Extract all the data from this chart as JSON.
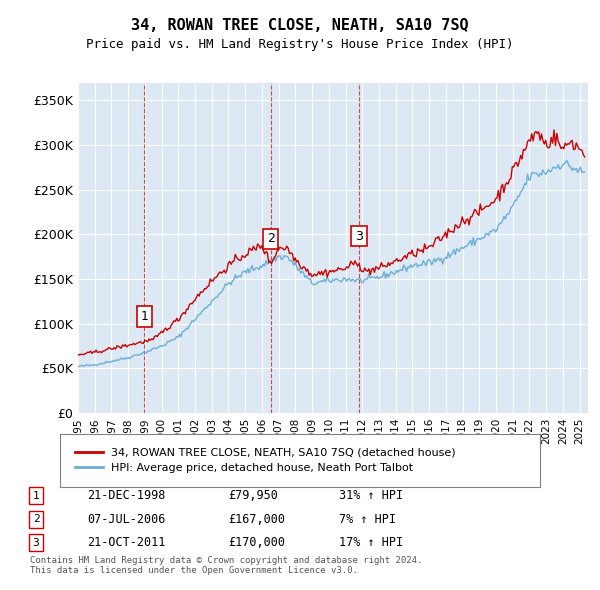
{
  "title": "34, ROWAN TREE CLOSE, NEATH, SA10 7SQ",
  "subtitle": "Price paid vs. HM Land Registry's House Price Index (HPI)",
  "background_color": "#dce9f5",
  "plot_bg_color": "#dce9f5",
  "ylabel_ticks": [
    "£0",
    "£50K",
    "£100K",
    "£150K",
    "£200K",
    "£250K",
    "£300K",
    "£350K"
  ],
  "ytick_values": [
    0,
    50000,
    100000,
    150000,
    200000,
    250000,
    300000,
    350000
  ],
  "ylim": [
    0,
    370000
  ],
  "xlim_start": 1995.0,
  "xlim_end": 2025.5,
  "sale_markers": [
    {
      "date_num": 1998.97,
      "price": 79950,
      "label": "1"
    },
    {
      "date_num": 2006.52,
      "price": 167000,
      "label": "2"
    },
    {
      "date_num": 2011.81,
      "price": 170000,
      "label": "3"
    }
  ],
  "sale_vlines": [
    1998.97,
    2006.52,
    2011.81
  ],
  "legend_house": "34, ROWAN TREE CLOSE, NEATH, SA10 7SQ (detached house)",
  "legend_hpi": "HPI: Average price, detached house, Neath Port Talbot",
  "table_rows": [
    {
      "num": "1",
      "date": "21-DEC-1998",
      "price": "£79,950",
      "hpi": "31% ↑ HPI"
    },
    {
      "num": "2",
      "date": "07-JUL-2006",
      "price": "£167,000",
      "hpi": "7% ↑ HPI"
    },
    {
      "num": "3",
      "date": "21-OCT-2011",
      "price": "£170,000",
      "hpi": "17% ↑ HPI"
    }
  ],
  "footer": "Contains HM Land Registry data © Crown copyright and database right 2024.\nThis data is licensed under the Open Government Licence v3.0.",
  "hpi_color": "#6baed6",
  "house_color": "#cc0000",
  "vline_color": "#cc0000",
  "xtick_years": [
    1995,
    1996,
    1997,
    1998,
    1999,
    2000,
    2001,
    2002,
    2003,
    2004,
    2005,
    2006,
    2007,
    2008,
    2009,
    2010,
    2011,
    2012,
    2013,
    2014,
    2015,
    2016,
    2017,
    2018,
    2019,
    2020,
    2021,
    2022,
    2023,
    2024,
    2025
  ]
}
